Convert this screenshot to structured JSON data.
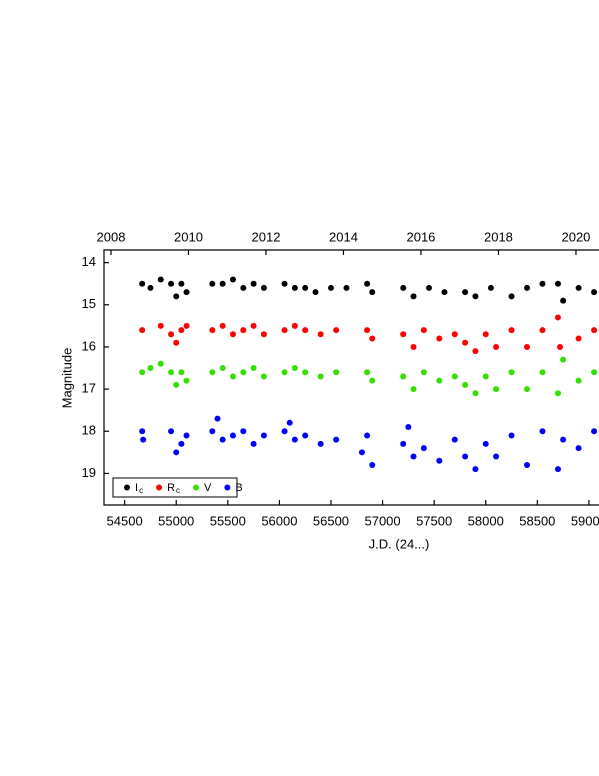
{
  "chart_data": {
    "type": "scatter",
    "x_label": "J.D. (24...)",
    "y_label": "Magnitude",
    "xlim": [
      54300,
      59340
    ],
    "xticks": [
      54500,
      55000,
      55500,
      56000,
      56500,
      57000,
      57500,
      58000,
      58500,
      59000
    ],
    "x2lim": [
      2007.82,
      2021.24
    ],
    "x2ticks": [
      2008,
      2010,
      2012,
      2014,
      2016,
      2018,
      2020
    ],
    "ylim": [
      13.7,
      19.75
    ],
    "y_inverted": true,
    "yticks": [
      14,
      15,
      16,
      17,
      18,
      19
    ],
    "legend": "lower left",
    "series": [
      {
        "name": "I",
        "name_sub": "c",
        "color": "#000000",
        "x": [
          54670,
          54750,
          54850,
          54950,
          55000,
          55050,
          55100,
          55350,
          55450,
          55550,
          55650,
          55750,
          55850,
          56050,
          56150,
          56250,
          56350,
          56500,
          56650,
          56850,
          56900,
          57200,
          57300,
          57450,
          57600,
          57800,
          57900,
          58050,
          58250,
          58400,
          58550,
          58700,
          58750,
          58900,
          59050
        ],
        "values": [
          14.5,
          14.6,
          14.4,
          14.5,
          14.8,
          14.5,
          14.7,
          14.5,
          14.5,
          14.4,
          14.6,
          14.5,
          14.6,
          14.5,
          14.6,
          14.6,
          14.7,
          14.6,
          14.6,
          14.5,
          14.7,
          14.6,
          14.8,
          14.6,
          14.7,
          14.7,
          14.8,
          14.6,
          14.8,
          14.6,
          14.5,
          14.5,
          14.9,
          14.6,
          14.7
        ]
      },
      {
        "name": "R",
        "name_sub": "c",
        "color": "#ff0000",
        "x": [
          54670,
          54850,
          54950,
          55000,
          55050,
          55100,
          55350,
          55450,
          55550,
          55650,
          55750,
          55850,
          56050,
          56150,
          56250,
          56400,
          56550,
          56850,
          56900,
          57200,
          57300,
          57400,
          57550,
          57700,
          57800,
          57900,
          58000,
          58100,
          58250,
          58400,
          58550,
          58700,
          58720,
          58900,
          59050
        ],
        "values": [
          15.6,
          15.5,
          15.7,
          15.9,
          15.6,
          15.5,
          15.6,
          15.5,
          15.7,
          15.6,
          15.5,
          15.7,
          15.6,
          15.5,
          15.6,
          15.7,
          15.6,
          15.6,
          15.8,
          15.7,
          16.0,
          15.6,
          15.8,
          15.7,
          15.9,
          16.1,
          15.7,
          16.0,
          15.6,
          16.0,
          15.6,
          15.3,
          16.0,
          15.8,
          15.6
        ]
      },
      {
        "name": "V",
        "name_sub": "",
        "color": "#33e000",
        "x": [
          54670,
          54750,
          54850,
          54950,
          55000,
          55050,
          55100,
          55350,
          55450,
          55550,
          55650,
          55750,
          55850,
          56050,
          56150,
          56250,
          56400,
          56550,
          56850,
          56900,
          57200,
          57300,
          57400,
          57550,
          57700,
          57800,
          57900,
          58000,
          58100,
          58250,
          58400,
          58550,
          58700,
          58750,
          58900,
          59050
        ],
        "values": [
          16.6,
          16.5,
          16.4,
          16.6,
          16.9,
          16.6,
          16.8,
          16.6,
          16.5,
          16.7,
          16.6,
          16.5,
          16.7,
          16.6,
          16.5,
          16.6,
          16.7,
          16.6,
          16.6,
          16.8,
          16.7,
          17.0,
          16.6,
          16.8,
          16.7,
          16.9,
          17.1,
          16.7,
          17.0,
          16.6,
          17.0,
          16.6,
          17.1,
          16.3,
          16.8,
          16.6
        ]
      },
      {
        "name": "B",
        "name_sub": "",
        "color": "#0000ff",
        "x": [
          54670,
          54680,
          54950,
          55000,
          55050,
          55100,
          55350,
          55400,
          55450,
          55550,
          55650,
          55750,
          55850,
          56050,
          56100,
          56150,
          56250,
          56400,
          56550,
          56800,
          56850,
          56900,
          57200,
          57250,
          57300,
          57400,
          57550,
          57700,
          57800,
          57900,
          58000,
          58100,
          58250,
          58400,
          58550,
          58700,
          58750,
          58900,
          59050
        ],
        "values": [
          18.0,
          18.2,
          18.0,
          18.5,
          18.3,
          18.1,
          18.0,
          17.7,
          18.2,
          18.1,
          18.0,
          18.3,
          18.1,
          18.0,
          17.8,
          18.2,
          18.1,
          18.3,
          18.2,
          18.5,
          18.1,
          18.8,
          18.3,
          17.9,
          18.6,
          18.4,
          18.7,
          18.2,
          18.6,
          18.9,
          18.3,
          18.6,
          18.1,
          18.8,
          18.0,
          18.9,
          18.2,
          18.4,
          18.0
        ]
      }
    ]
  }
}
